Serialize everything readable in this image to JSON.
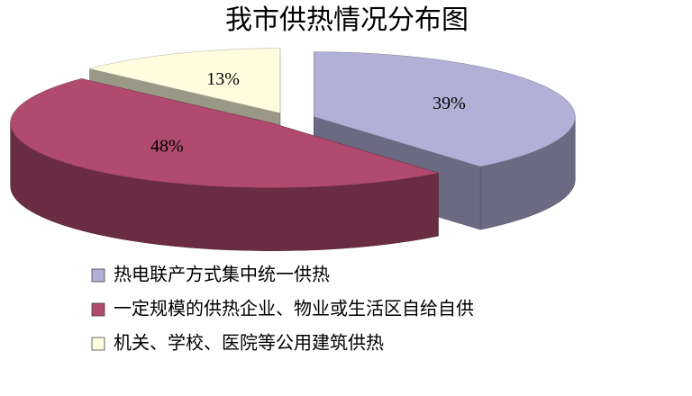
{
  "chart_data": {
    "type": "pie",
    "title": "我市供热情况分布图",
    "categories": [
      "热电联产方式集中统一供热",
      "一定规模的供热企业、物业或生活区自给自供",
      "机关、学校、医院等公用建筑供热"
    ],
    "values": [
      39,
      48,
      13
    ],
    "value_labels": [
      "39%",
      "48%",
      "13%"
    ],
    "colors": [
      "#b3b0d8",
      "#b04a6e",
      "#fffde0"
    ]
  }
}
